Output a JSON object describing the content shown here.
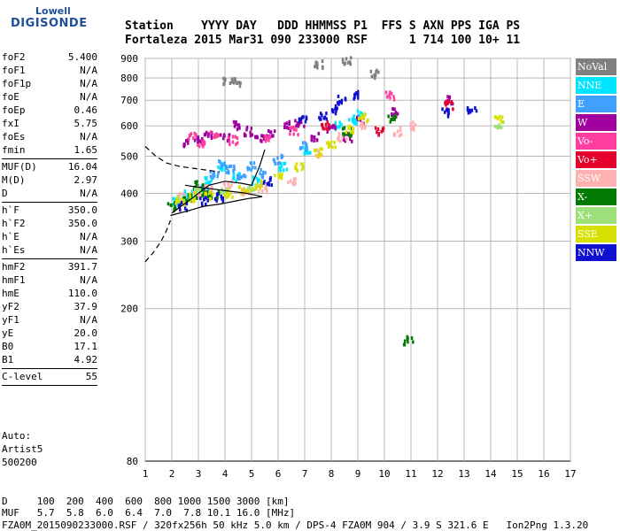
{
  "logo": {
    "top": "Lowell",
    "bottom": "DIGISONDE"
  },
  "header": {
    "line1": "Station    YYYY DAY   DDD HHMMSS P1  FFS S AXN PPS IGA PS",
    "line2": "Fortaleza 2015 Mar31 090 233000 RSF      1 714 100 10+ 11"
  },
  "params": {
    "group1": [
      {
        "label": "foF2",
        "value": "5.400"
      },
      {
        "label": "foF1",
        "value": "N/A"
      },
      {
        "label": "foF1p",
        "value": "N/A"
      },
      {
        "label": "foE",
        "value": "N/A"
      },
      {
        "label": "foEp",
        "value": "0.46"
      },
      {
        "label": "fxI",
        "value": "5.75"
      },
      {
        "label": "foEs",
        "value": "N/A"
      },
      {
        "label": "fmin",
        "value": "1.65"
      }
    ],
    "group2": [
      {
        "label": "MUF(D)",
        "value": "16.04"
      },
      {
        "label": "M(D)",
        "value": "2.97"
      },
      {
        "label": "D",
        "value": "N/A"
      }
    ],
    "group3": [
      {
        "label": "h`F",
        "value": "350.0"
      },
      {
        "label": "h`F2",
        "value": "350.0"
      },
      {
        "label": "h`E",
        "value": "N/A"
      },
      {
        "label": "h`Es",
        "value": "N/A"
      }
    ],
    "group4": [
      {
        "label": "hmF2",
        "value": "391.7"
      },
      {
        "label": "hmF1",
        "value": "N/A"
      },
      {
        "label": "hmE",
        "value": "110.0"
      },
      {
        "label": "yF2",
        "value": "37.9"
      },
      {
        "label": "yF1",
        "value": "N/A"
      },
      {
        "label": "yE",
        "value": "20.0"
      },
      {
        "label": "B0",
        "value": "17.1"
      },
      {
        "label": "B1",
        "value": "4.92"
      }
    ],
    "group5": [
      {
        "label": "C-level",
        "value": "55"
      }
    ]
  },
  "autoscaling": {
    "line1": "Auto:",
    "line2": "Artist5",
    "line3": "500200"
  },
  "legend": [
    {
      "label": "NoVal",
      "color": "#808080"
    },
    {
      "label": "NNE",
      "color": "#00e5ff"
    },
    {
      "label": "E",
      "color": "#3fa0ff"
    },
    {
      "label": "W",
      "color": "#a0009e"
    },
    {
      "label": "Vo-",
      "color": "#ff3fa0"
    },
    {
      "label": "Vo+",
      "color": "#e6002e"
    },
    {
      "label": "SSW",
      "color": "#ffb0b0"
    },
    {
      "label": "X-",
      "color": "#007a00"
    },
    {
      "label": "X+",
      "color": "#9ee07a"
    },
    {
      "label": "SSE",
      "color": "#d7e000"
    },
    {
      "label": "NNW",
      "color": "#1010d0"
    }
  ],
  "footer": {
    "line1": "D     100  200  400  600  800 1000 1500 3000 [km]",
    "line2": "MUF   5.7  5.8  6.0  6.4  7.0  7.8 10.1 16.0 [MHz]",
    "line3": "FZA0M_2015090233000.RSF / 320fx256h 50 kHz 5.0 km / DPS-4 FZA0M 904 / 3.9 S 321.6 E   Ion2Png 1.3.20"
  },
  "chart_data": {
    "type": "scatter",
    "xlim": [
      1,
      17
    ],
    "ylim": [
      80,
      900
    ],
    "x_ticks": [
      1,
      2,
      3,
      4,
      5,
      6,
      7,
      8,
      9,
      10,
      11,
      12,
      13,
      14,
      15,
      16,
      17
    ],
    "y_ticks": [
      80,
      200,
      300,
      400,
      500,
      600,
      700,
      800,
      900
    ],
    "y_scale": "log",
    "grid": true,
    "series": [
      {
        "name": "NNE",
        "points": [
          [
            2.2,
            380
          ],
          [
            2.6,
            395
          ],
          [
            3.4,
            430
          ],
          [
            3.9,
            470
          ],
          [
            4.4,
            440
          ],
          [
            5.2,
            430
          ],
          [
            6.2,
            470
          ],
          [
            7.1,
            520
          ],
          [
            8.3,
            600
          ],
          [
            8.8,
            610
          ],
          [
            9.0,
            640
          ]
        ]
      },
      {
        "name": "E",
        "points": [
          [
            3.2,
            410
          ],
          [
            3.6,
            450
          ],
          [
            3.9,
            480
          ],
          [
            4.2,
            460
          ],
          [
            4.6,
            440
          ],
          [
            5.0,
            470
          ],
          [
            5.4,
            450
          ],
          [
            6.0,
            490
          ],
          [
            7.0,
            530
          ]
        ]
      },
      {
        "name": "W",
        "points": [
          [
            2.6,
            540
          ],
          [
            3.0,
            550
          ],
          [
            3.4,
            570
          ],
          [
            4.0,
            560
          ],
          [
            4.5,
            600
          ],
          [
            4.9,
            580
          ],
          [
            5.3,
            560
          ],
          [
            5.7,
            570
          ],
          [
            6.3,
            600
          ],
          [
            6.8,
            610
          ],
          [
            7.4,
            560
          ],
          [
            8.0,
            590
          ],
          [
            8.6,
            560
          ],
          [
            9.1,
            620
          ],
          [
            10.4,
            650
          ],
          [
            12.4,
            700
          ]
        ]
      },
      {
        "name": "Vo-",
        "points": [
          [
            2.8,
            560
          ],
          [
            3.1,
            540
          ],
          [
            3.6,
            570
          ],
          [
            4.3,
            550
          ],
          [
            5.6,
            560
          ],
          [
            6.6,
            580
          ],
          [
            10.2,
            720
          ]
        ]
      },
      {
        "name": "Vo+",
        "points": [
          [
            7.8,
            600
          ],
          [
            9.8,
            580
          ],
          [
            12.4,
            680
          ]
        ]
      },
      {
        "name": "SSW",
        "points": [
          [
            2.4,
            390
          ],
          [
            2.9,
            400
          ],
          [
            3.4,
            410
          ],
          [
            4.1,
            420
          ],
          [
            4.8,
            405
          ],
          [
            5.4,
            410
          ],
          [
            6.5,
            430
          ],
          [
            7.5,
            510
          ],
          [
            8.4,
            560
          ],
          [
            9.1,
            600
          ],
          [
            10.5,
            580
          ],
          [
            11.0,
            600
          ]
        ]
      },
      {
        "name": "X-",
        "points": [
          [
            2.0,
            370
          ],
          [
            2.4,
            380
          ],
          [
            2.8,
            390
          ],
          [
            3.0,
            420
          ],
          [
            3.3,
            400
          ],
          [
            3.6,
            395
          ],
          [
            8.6,
            580
          ],
          [
            10.3,
            630
          ],
          [
            10.9,
            165
          ]
        ]
      },
      {
        "name": "X+",
        "points": [
          [
            2.3,
            385
          ],
          [
            3.0,
            410
          ],
          [
            4.0,
            400
          ],
          [
            5.0,
            415
          ],
          [
            14.3,
            600
          ]
        ]
      },
      {
        "name": "SSE",
        "points": [
          [
            2.3,
            380
          ],
          [
            2.8,
            390
          ],
          [
            3.4,
            395
          ],
          [
            4.1,
            400
          ],
          [
            4.7,
            410
          ],
          [
            5.2,
            420
          ],
          [
            6.0,
            440
          ],
          [
            6.8,
            470
          ],
          [
            7.5,
            510
          ],
          [
            8.0,
            540
          ],
          [
            8.7,
            590
          ],
          [
            9.2,
            630
          ],
          [
            14.3,
            620
          ]
        ]
      },
      {
        "name": "NNW",
        "points": [
          [
            2.4,
            370
          ],
          [
            3.2,
            380
          ],
          [
            3.8,
            390
          ],
          [
            5.6,
            430
          ],
          [
            6.9,
            620
          ],
          [
            7.7,
            640
          ],
          [
            8.1,
            660
          ],
          [
            8.4,
            700
          ],
          [
            9.0,
            720
          ],
          [
            12.3,
            650
          ],
          [
            13.3,
            660
          ]
        ]
      },
      {
        "name": "NoVal",
        "points": [
          [
            4.1,
            790
          ],
          [
            4.5,
            780
          ],
          [
            7.5,
            870
          ],
          [
            8.6,
            890
          ],
          [
            9.6,
            820
          ]
        ]
      }
    ],
    "profile_solid": [
      [
        1.95,
        350
      ],
      [
        2.6,
        360
      ],
      [
        3.2,
        370
      ],
      [
        3.8,
        375
      ],
      [
        4.4,
        382
      ],
      [
        4.9,
        388
      ],
      [
        5.2,
        390
      ],
      [
        5.4,
        392
      ],
      [
        5.2,
        395
      ],
      [
        4.8,
        400
      ],
      [
        4.2,
        405
      ],
      [
        3.6,
        410
      ],
      [
        3.0,
        415
      ],
      [
        2.5,
        420
      ]
    ],
    "profile_solid_upper": [
      [
        2.0,
        355
      ],
      [
        2.8,
        390
      ],
      [
        3.4,
        420
      ],
      [
        4.0,
        430
      ],
      [
        4.6,
        425
      ],
      [
        5.0,
        420
      ],
      [
        5.3,
        470
      ],
      [
        5.5,
        520
      ]
    ],
    "profile_dashed_low": [
      [
        1.0,
        265
      ],
      [
        1.3,
        280
      ],
      [
        1.6,
        300
      ],
      [
        1.8,
        320
      ],
      [
        1.95,
        340
      ]
    ],
    "profile_dashed_high": [
      [
        1.0,
        530
      ],
      [
        1.4,
        500
      ],
      [
        1.8,
        480
      ],
      [
        2.3,
        470
      ],
      [
        2.8,
        465
      ],
      [
        3.3,
        460
      ],
      [
        3.8,
        455
      ]
    ]
  }
}
